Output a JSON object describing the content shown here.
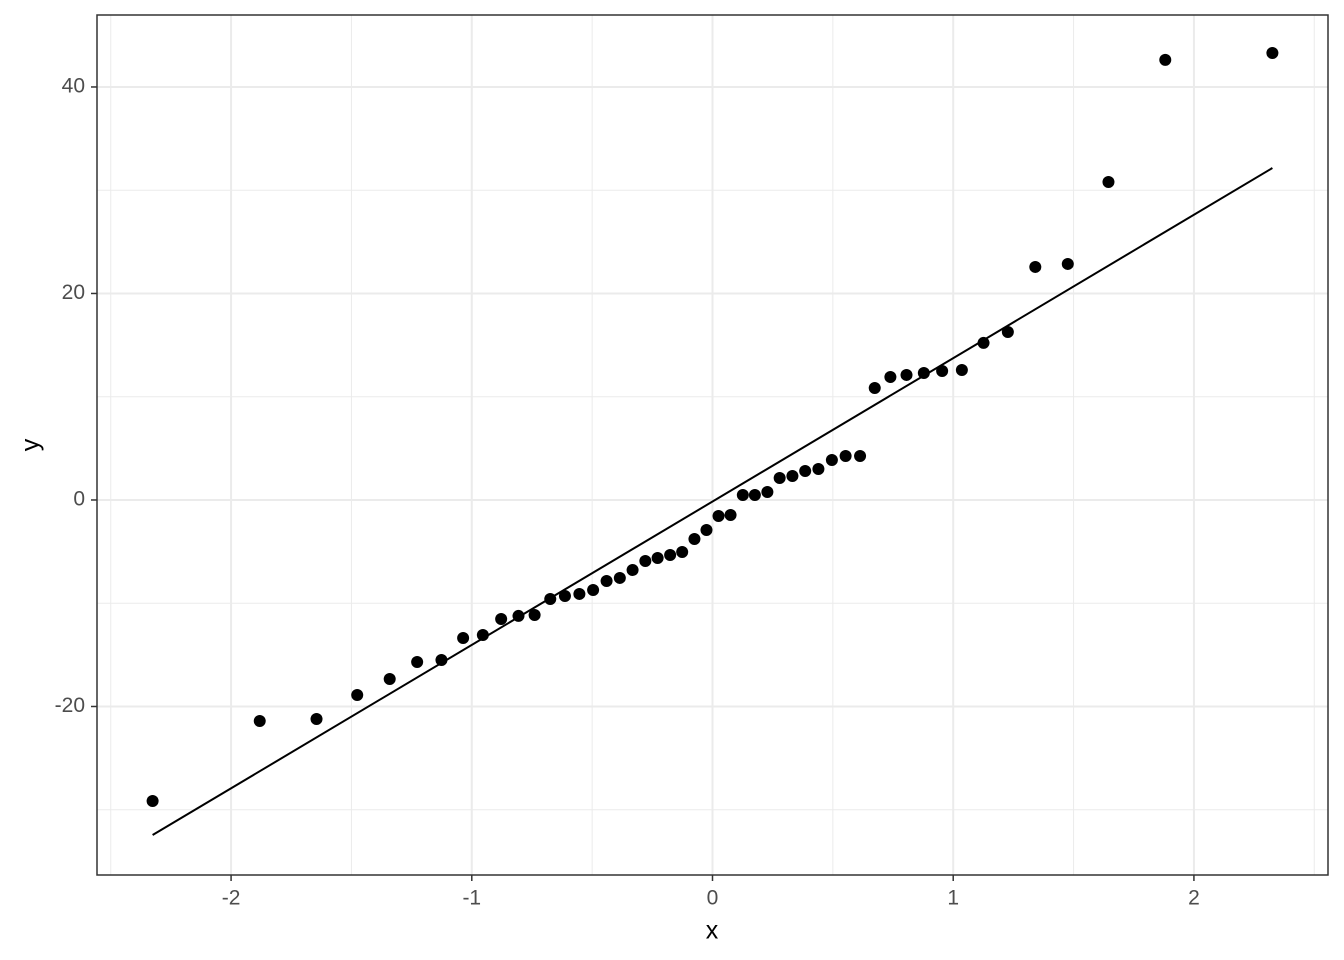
{
  "chart_data": {
    "type": "scatter",
    "xlabel": "x",
    "ylabel": "y",
    "x": [
      -2.326,
      -1.881,
      -1.645,
      -1.476,
      -1.341,
      -1.227,
      -1.126,
      -1.036,
      -0.954,
      -0.878,
      -0.806,
      -0.739,
      -0.674,
      -0.613,
      -0.553,
      -0.496,
      -0.44,
      -0.385,
      -0.332,
      -0.279,
      -0.228,
      -0.176,
      -0.126,
      -0.075,
      -0.025,
      0.025,
      0.075,
      0.126,
      0.176,
      0.228,
      0.279,
      0.332,
      0.385,
      0.44,
      0.496,
      0.553,
      0.613,
      0.674,
      0.739,
      0.806,
      0.878,
      0.954,
      1.036,
      1.126,
      1.227,
      1.341,
      1.476,
      1.645,
      1.881,
      2.326
    ],
    "values": [
      -29.15,
      -21.4,
      -21.21,
      -18.89,
      -17.34,
      -15.69,
      -15.5,
      -13.37,
      -13.08,
      -11.53,
      -11.23,
      -11.14,
      -9.59,
      -9.3,
      -9.1,
      -8.72,
      -7.85,
      -7.55,
      -6.78,
      -5.91,
      -5.62,
      -5.33,
      -5.04,
      -3.78,
      -2.91,
      -1.55,
      -1.45,
      0.48,
      0.48,
      0.77,
      2.13,
      2.32,
      2.81,
      3.0,
      3.87,
      4.26,
      4.26,
      10.85,
      11.91,
      12.11,
      12.3,
      12.49,
      12.59,
      15.21,
      16.27,
      22.57,
      22.86,
      30.8,
      42.62,
      43.29
    ],
    "color": "#000000",
    "reference_line": {
      "x": [
        -2.326,
        2.326
      ],
      "y": [
        -32.45,
        32.15
      ],
      "color": "#000000"
    },
    "xlim": [
      -2.557,
      2.557
    ],
    "ylim": [
      -36.32,
      46.97
    ],
    "xticks": [
      -2,
      -1,
      0,
      1,
      2
    ],
    "yticks": [
      -20,
      0,
      20,
      40
    ],
    "x_minor_grid": [
      -2.5,
      -1.5,
      -0.5,
      0.5,
      1.5,
      2.5
    ],
    "y_minor_grid": [
      -30,
      -10,
      10,
      30
    ],
    "grid": true
  }
}
